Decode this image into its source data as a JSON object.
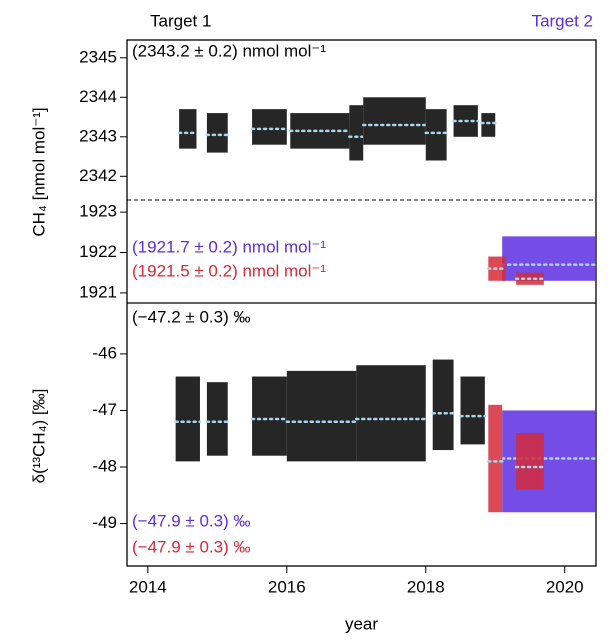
{
  "chart_data": [
    {
      "type": "range",
      "ylabel": "CH₄ [nmol mol⁻¹]",
      "labels": [
        "Target 1",
        "Target 2"
      ],
      "label_colors": [
        "#000000",
        "#5b2ee0"
      ],
      "ylim": [
        2341.4,
        2345.45
      ],
      "yticks": [
        2342,
        2343,
        2344,
        2345
      ],
      "annotations": [
        {
          "text": "(2343.2 ± 0.2) nmol mol⁻¹",
          "color": "#000000"
        }
      ],
      "series": [
        {
          "color": "#000000",
          "x0": [
            2014.45,
            2014.85,
            2015.5,
            2016.05,
            2016.9,
            2017.1,
            2018.0,
            2018.4,
            2018.8
          ],
          "x1": [
            2014.7,
            2015.15,
            2016.0,
            2016.9,
            2017.1,
            2018.0,
            2018.3,
            2018.75,
            2019.0
          ],
          "low": [
            2342.7,
            2342.6,
            2342.8,
            2342.7,
            2342.4,
            2342.8,
            2342.4,
            2343.0,
            2343.0
          ],
          "high": [
            2343.7,
            2343.6,
            2343.7,
            2343.6,
            2343.8,
            2344.0,
            2343.7,
            2343.8,
            2343.6
          ],
          "mean": [
            2343.1,
            2343.05,
            2343.2,
            2343.15,
            2343.0,
            2343.3,
            2343.1,
            2343.4,
            2343.35
          ]
        }
      ]
    },
    {
      "type": "range",
      "ylim": [
        1920.75,
        1923.3
      ],
      "yticks": [
        1921,
        1922,
        1923
      ],
      "annotations": [
        {
          "text": "(1921.7 ± 0.2) nmol mol⁻¹",
          "color": "#5b2ee0"
        },
        {
          "text": "(1921.5 ± 0.2) nmol mol⁻¹",
          "color": "#d42a3a"
        }
      ],
      "series": [
        {
          "color": "#5b2ee0",
          "x0": [
            2019.1
          ],
          "x1": [
            2020.45
          ],
          "low": [
            1921.3
          ],
          "high": [
            1922.4
          ],
          "mean": [
            1921.7
          ]
        },
        {
          "color": "#d42a3a",
          "x0": [
            2018.9,
            2019.3
          ],
          "x1": [
            2019.15,
            2019.7
          ],
          "low": [
            1921.3,
            1921.2
          ],
          "high": [
            1921.9,
            1921.5
          ],
          "mean": [
            1921.6,
            1921.35
          ]
        }
      ]
    },
    {
      "type": "range",
      "ylabel": "δ(¹³CH₄) [‰]",
      "xlabel": "year",
      "xlim": [
        2013.7,
        2020.45
      ],
      "xticks": [
        2014,
        2016,
        2018,
        2020
      ],
      "ylim": [
        -49.75,
        -45.1
      ],
      "yticks": [
        -46,
        -47,
        -48,
        -49
      ],
      "annotations": [
        {
          "text": "(−47.2 ± 0.3) ‰",
          "color": "#000000"
        },
        {
          "text": "(−47.9 ± 0.3) ‰",
          "color": "#5b2ee0"
        },
        {
          "text": "(−47.9 ± 0.3) ‰",
          "color": "#d42a3a"
        }
      ],
      "series": [
        {
          "color": "#000000",
          "x0": [
            2014.4,
            2014.85,
            2015.5,
            2016.0,
            2017.0,
            2018.1,
            2018.5
          ],
          "x1": [
            2014.75,
            2015.15,
            2016.0,
            2017.0,
            2018.0,
            2018.4,
            2018.85
          ],
          "low": [
            -47.9,
            -47.8,
            -47.8,
            -47.9,
            -47.9,
            -47.7,
            -47.6
          ],
          "high": [
            -46.4,
            -46.5,
            -46.4,
            -46.3,
            -46.2,
            -46.1,
            -46.4
          ],
          "mean": [
            -47.2,
            -47.2,
            -47.15,
            -47.2,
            -47.15,
            -47.05,
            -47.1
          ]
        },
        {
          "color": "#5b2ee0",
          "x0": [
            2019.1
          ],
          "x1": [
            2020.45
          ],
          "low": [
            -48.8
          ],
          "high": [
            -47.0
          ],
          "mean": [
            -47.85
          ]
        },
        {
          "color": "#d42a3a",
          "x0": [
            2018.9,
            2019.3
          ],
          "x1": [
            2019.1,
            2019.7
          ],
          "low": [
            -48.8,
            -48.4
          ],
          "high": [
            -46.9,
            -47.4
          ],
          "mean": [
            -47.9,
            -48.0
          ]
        }
      ]
    }
  ]
}
